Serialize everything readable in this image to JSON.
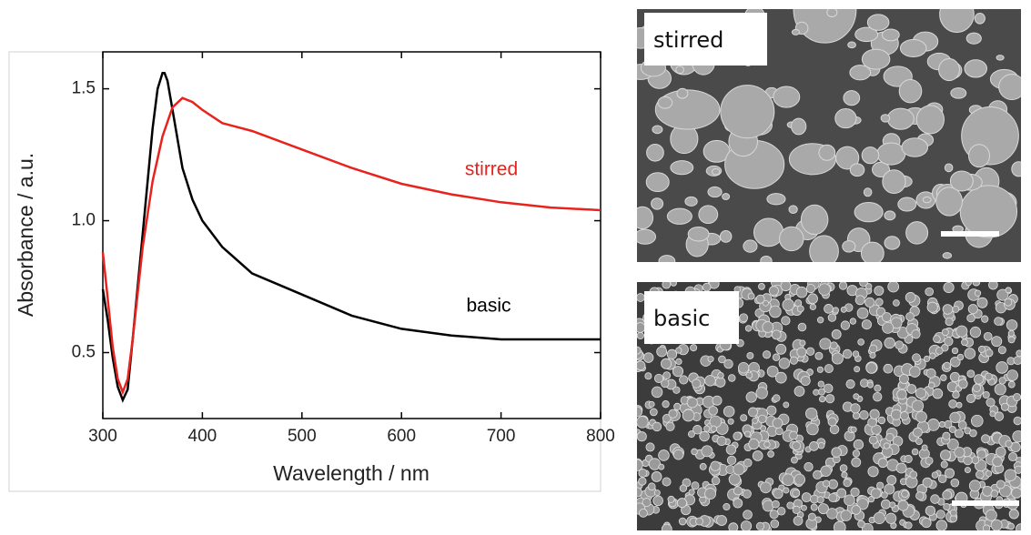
{
  "chart_data": {
    "type": "line",
    "xlabel": "Wavelength / nm",
    "ylabel": "Absorbance / a.u.",
    "xlim": [
      300,
      800
    ],
    "ylim": [
      0.25,
      1.64
    ],
    "xticks": [
      300,
      400,
      500,
      600,
      700,
      800
    ],
    "yticks": [
      0.5,
      {
        "value": 1,
        "label": "1.0"
      },
      1.5
    ],
    "series": [
      {
        "name": "basic",
        "color": "#000000",
        "x": [
          300,
          305,
          310,
          315,
          320,
          325,
          330,
          340,
          350,
          355,
          360,
          362,
          365,
          370,
          380,
          390,
          400,
          420,
          450,
          500,
          550,
          600,
          650,
          700,
          750,
          800
        ],
        "values": [
          0.74,
          0.62,
          0.48,
          0.37,
          0.32,
          0.36,
          0.55,
          0.95,
          1.35,
          1.5,
          1.56,
          1.56,
          1.53,
          1.42,
          1.2,
          1.08,
          1.0,
          0.9,
          0.8,
          0.72,
          0.64,
          0.59,
          0.565,
          0.55,
          0.55,
          0.55
        ]
      },
      {
        "name": "stirred",
        "color": "#e8221c",
        "x": [
          300,
          305,
          310,
          315,
          320,
          325,
          330,
          340,
          350,
          360,
          370,
          380,
          390,
          400,
          420,
          450,
          500,
          550,
          600,
          650,
          700,
          750,
          800
        ],
        "values": [
          0.88,
          0.7,
          0.52,
          0.4,
          0.35,
          0.4,
          0.55,
          0.9,
          1.15,
          1.32,
          1.43,
          1.465,
          1.45,
          1.42,
          1.37,
          1.34,
          1.27,
          1.2,
          1.14,
          1.1,
          1.07,
          1.05,
          1.04
        ]
      }
    ]
  },
  "images": [
    {
      "label": "stirred"
    },
    {
      "label": "basic"
    }
  ]
}
